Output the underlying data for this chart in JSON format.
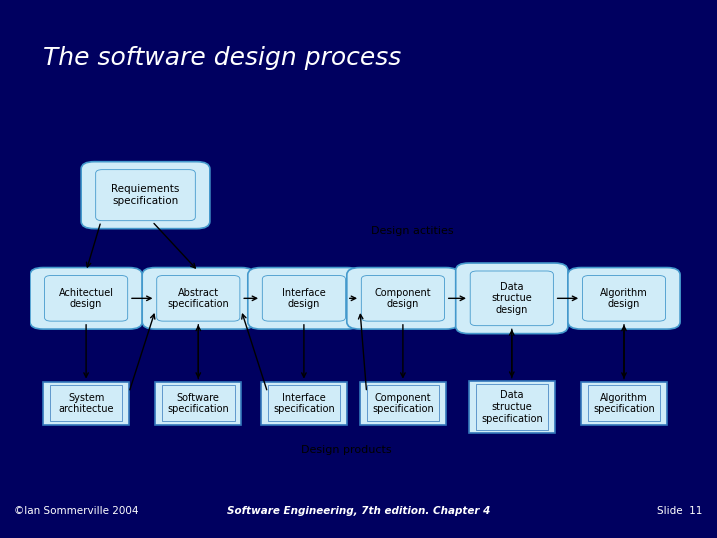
{
  "title": "The software design process",
  "title_color": "#ffffff",
  "title_bg": "#000080",
  "slide_bg": "#000060",
  "diagram_bg": "#c8eef8",
  "footer_left": "©Ian Sommerville 2004",
  "footer_center": "Software Engineering, 7th edition. Chapter 4",
  "footer_right": "Slide  11",
  "footer_color": "#ffffff",
  "red_line_color": "#cc0000",
  "dark_strip_color": "#000044",
  "diagram_border_color": "#4488cc",
  "rounded_fill": "#d0ecf8",
  "rounded_edge": "#4499cc",
  "square_fill": "#d0ecf8",
  "square_edge": "#3377bb",
  "arrow_color": "#000000",
  "label_color": "#000000"
}
